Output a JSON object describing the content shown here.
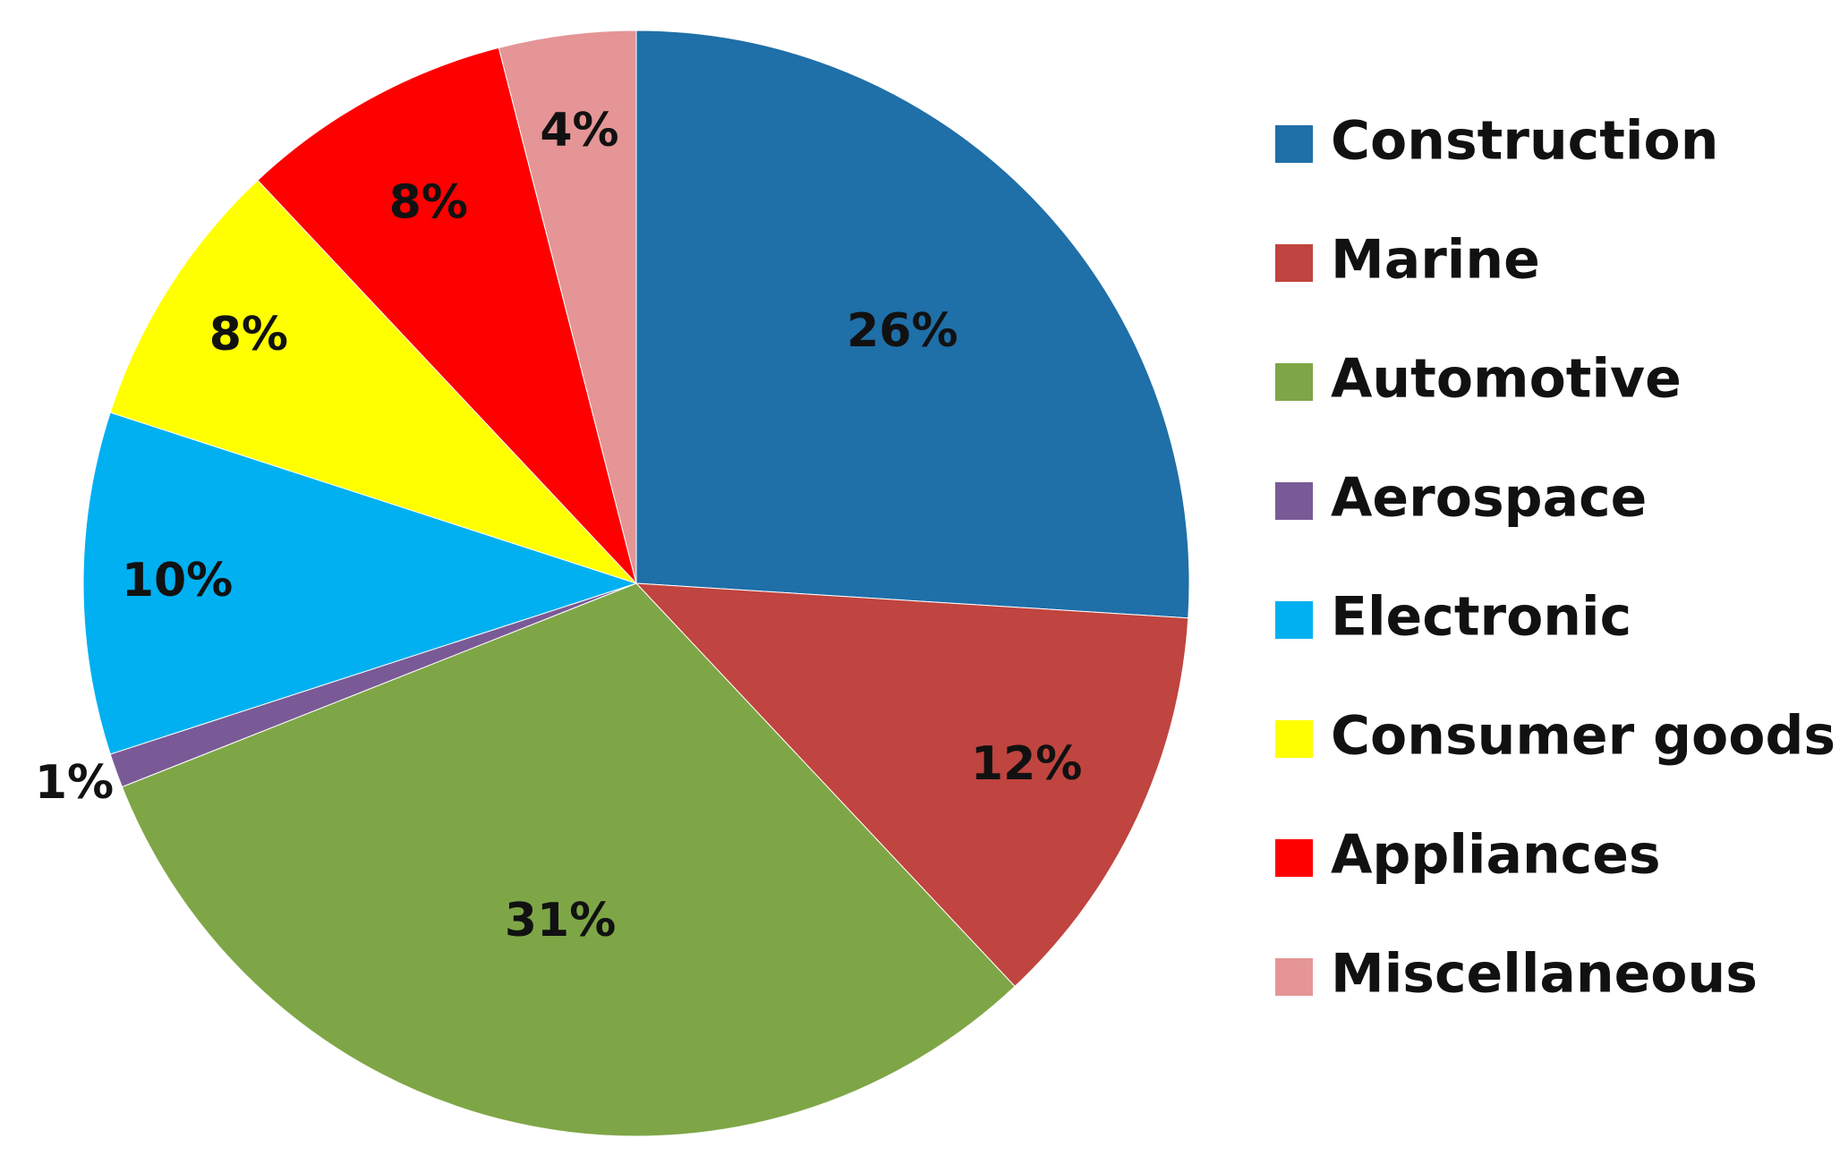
{
  "chart_data": {
    "type": "pie",
    "legend_position": "right",
    "slices": [
      {
        "name": "Construction",
        "value": 26,
        "label": "26%",
        "color": "#1F6FA8"
      },
      {
        "name": "Marine",
        "value": 12,
        "label": "12%",
        "color": "#C0443F"
      },
      {
        "name": "Automotive",
        "value": 31,
        "label": "31%",
        "color": "#7EA646"
      },
      {
        "name": "Aerospace",
        "value": 1,
        "label": "1%",
        "color": "#7A5A96"
      },
      {
        "name": "Electronic",
        "value": 10,
        "label": "10%",
        "color": "#00B0F0"
      },
      {
        "name": "Consumer goods",
        "value": 8,
        "label": "8%",
        "color": "#FFFF00"
      },
      {
        "name": "Appliances",
        "value": 8,
        "label": "8%",
        "color": "#FF0000"
      },
      {
        "name": "Miscellaneous",
        "value": 4,
        "label": "4%",
        "color": "#E59595"
      }
    ]
  }
}
